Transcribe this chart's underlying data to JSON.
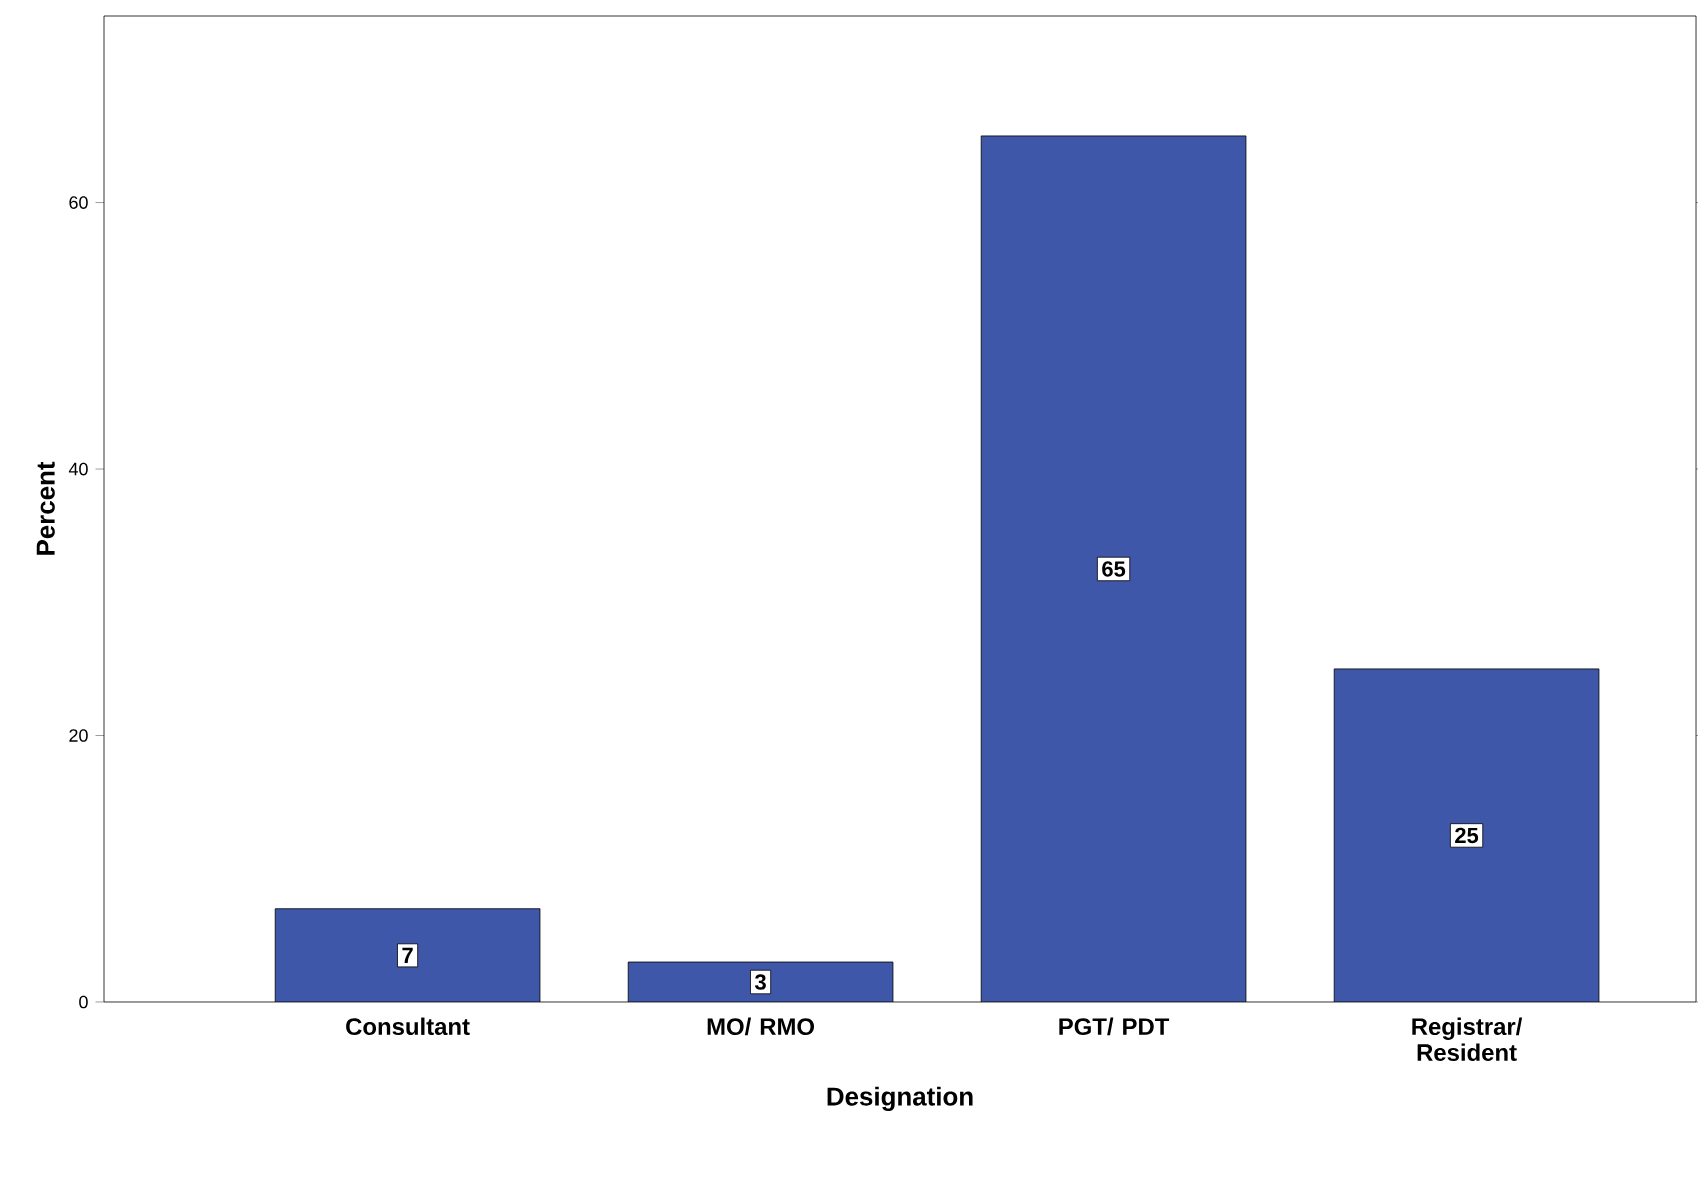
{
  "chart_data": {
    "type": "bar",
    "xlabel": "Designation",
    "ylabel": "Percent",
    "categories": [
      "Consultant",
      "MO/ RMO",
      "PGT/ PDT",
      "Registrar/ Resident"
    ],
    "values": [
      7,
      3,
      65,
      25
    ],
    "color": "#3f57a8",
    "ylim": [
      0,
      74
    ],
    "yticks": [
      0,
      20,
      40,
      60
    ],
    "data_labels": true
  }
}
